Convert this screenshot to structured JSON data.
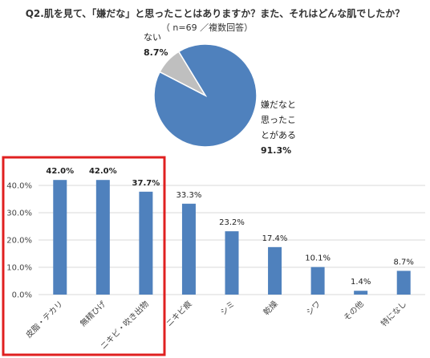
{
  "title": "Q2.肌を見て、「嫌だな」と思ったことはありますか？また、それはどんな肌でしたか？",
  "subtitle": "（ n=69 ／複数回答）",
  "colors": {
    "blue": "#4f81bd",
    "gray": "#bfbfbf",
    "highlight": "#e02020",
    "grid": "#d9d9d9"
  },
  "chart_data": [
    {
      "type": "pie",
      "categories": [
        "嫌だなと思ったことがある",
        "ない"
      ],
      "values": [
        91.3,
        8.7
      ],
      "labels": {
        "yes": [
          "嫌だなと",
          "思ったこ",
          "とがある",
          "91.3%"
        ],
        "no": [
          "ない",
          "8.7%"
        ]
      }
    },
    {
      "type": "bar",
      "categories": [
        "皮脂・テカリ",
        "無精ひげ",
        "ニキビ・吹き出物",
        "ニキビ痕",
        "シミ",
        "乾燥",
        "シワ",
        "その他",
        "特になし"
      ],
      "values": [
        42.0,
        42.0,
        37.7,
        33.3,
        23.2,
        17.4,
        10.1,
        1.4,
        8.7
      ],
      "value_labels": [
        "42.0%",
        "42.0%",
        "37.7%",
        "33.3%",
        "23.2%",
        "17.4%",
        "10.1%",
        "1.4%",
        "8.7%"
      ],
      "y_ticks": [
        "0.0%",
        "10.0%",
        "20.0%",
        "30.0%",
        "40.0%"
      ],
      "ylim": [
        0,
        45
      ],
      "grid": true,
      "highlighted_categories": [
        "皮脂・テカリ",
        "無精ひげ",
        "ニキビ・吹き出物"
      ]
    }
  ]
}
